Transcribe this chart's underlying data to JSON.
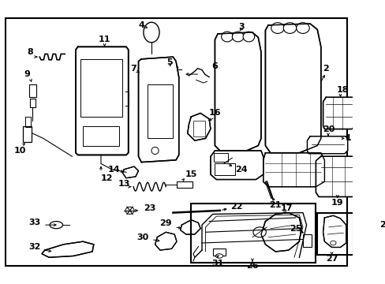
{
  "fig_width": 4.89,
  "fig_height": 3.6,
  "dpi": 100,
  "bg": "#ffffff",
  "border": "#000000"
}
